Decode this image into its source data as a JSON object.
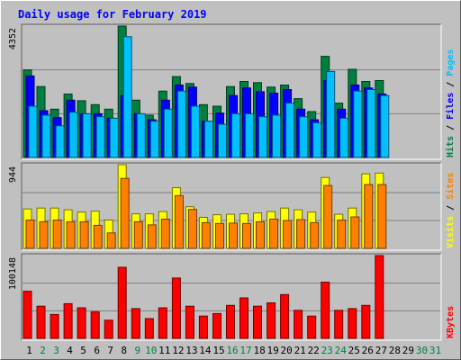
{
  "chart_data": {
    "type": "bar",
    "title": "Daily usage for February 2019",
    "colors": {
      "background": "#c0c0c0",
      "plot": "#c0c0c0",
      "title": "#0000ff",
      "hits": "#008040",
      "files": "#0000ff",
      "pages": "#00c0ff",
      "visits": "#ffff00",
      "sites": "#ff8000",
      "kbytes": "#ff0000",
      "weekend_label": "#008040",
      "weekday_label": "#000000"
    },
    "x": [
      "1",
      "2",
      "3",
      "4",
      "5",
      "6",
      "7",
      "8",
      "9",
      "10",
      "11",
      "12",
      "13",
      "14",
      "15",
      "16",
      "17",
      "18",
      "19",
      "20",
      "21",
      "22",
      "23",
      "24",
      "25",
      "26",
      "27",
      "28",
      "29",
      "30",
      "31"
    ],
    "weekend_days": [
      "2",
      "3",
      "9",
      "10",
      "16",
      "17",
      "23",
      "24",
      "30",
      "31"
    ],
    "panels": [
      {
        "id": "hits-files-pages",
        "max_label": "4352",
        "ymax": 4352,
        "legend": [
          {
            "text": "Hits",
            "color": "#008040"
          },
          {
            "text": " / ",
            "color": "#000000"
          },
          {
            "text": "Files",
            "color": "#0000ff"
          },
          {
            "text": " / ",
            "color": "#000000"
          },
          {
            "text": "Pages",
            "color": "#00c0ff"
          }
        ],
        "series": [
          {
            "name": "Hits",
            "color": "#008040",
            "values": [
              2900,
              2350,
              1600,
              2100,
              1880,
              1750,
              1600,
              4352,
              1900,
              1400,
              2200,
              2680,
              2450,
              1750,
              1700,
              2350,
              2520,
              2480,
              2330,
              2400,
              1950,
              1520,
              3350,
              1800,
              2920,
              2520,
              2550
            ]
          },
          {
            "name": "Files",
            "color": "#0000ff",
            "values": [
              2700,
              1550,
              1320,
              1900,
              1450,
              1450,
              1300,
              2050,
              1450,
              1250,
              1900,
              2400,
              2330,
              1200,
              1470,
              2050,
              2300,
              2180,
              2130,
              2250,
              1600,
              1250,
              2550,
              1600,
              2400,
              2300,
              2100
            ]
          },
          {
            "name": "Pages",
            "color": "#00c0ff",
            "values": [
              1700,
              1400,
              1050,
              1500,
              1450,
              1350,
              1300,
              4000,
              1450,
              1200,
              1600,
              2200,
              1700,
              1200,
              1100,
              1450,
              1450,
              1350,
              1400,
              1800,
              1350,
              1150,
              2850,
              1300,
              2200,
              2250,
              2050
            ]
          }
        ]
      },
      {
        "id": "visits-sites",
        "max_label": "944",
        "ymax": 944,
        "legend": [
          {
            "text": "Visits",
            "color": "#ffff00"
          },
          {
            "text": " / ",
            "color": "#000000"
          },
          {
            "text": "Sites",
            "color": "#ff8000"
          }
        ],
        "series": [
          {
            "name": "Visits",
            "color": "#ffff00",
            "values": [
              445,
              455,
              455,
              435,
              410,
              420,
              320,
              944,
              390,
              390,
              415,
              685,
              470,
              350,
              380,
              385,
              390,
              400,
              415,
              455,
              435,
              410,
              800,
              385,
              455,
              840,
              850
            ]
          },
          {
            "name": "Sites",
            "color": "#ff8000",
            "values": [
              320,
              300,
              320,
              300,
              300,
              260,
              175,
              790,
              300,
              265,
              330,
              595,
              440,
              290,
              280,
              285,
              280,
              300,
              330,
              315,
              325,
              290,
              710,
              320,
              355,
              720,
              720
            ]
          }
        ]
      },
      {
        "id": "kbytes",
        "max_label": "100148",
        "ymax": 100148,
        "legend": [
          {
            "text": "KBytes",
            "color": "#ff0000"
          }
        ],
        "series": [
          {
            "name": "KBytes",
            "color": "#ff0000",
            "values": [
              57000,
              39000,
              29000,
              42000,
              37000,
              32000,
              22000,
              86000,
              36000,
              24000,
              37000,
              73000,
              39000,
              27000,
              30000,
              40000,
              49000,
              39000,
              43000,
              53000,
              34000,
              27000,
              68000,
              34000,
              36000,
              40000,
              100148
            ]
          }
        ]
      }
    ]
  }
}
